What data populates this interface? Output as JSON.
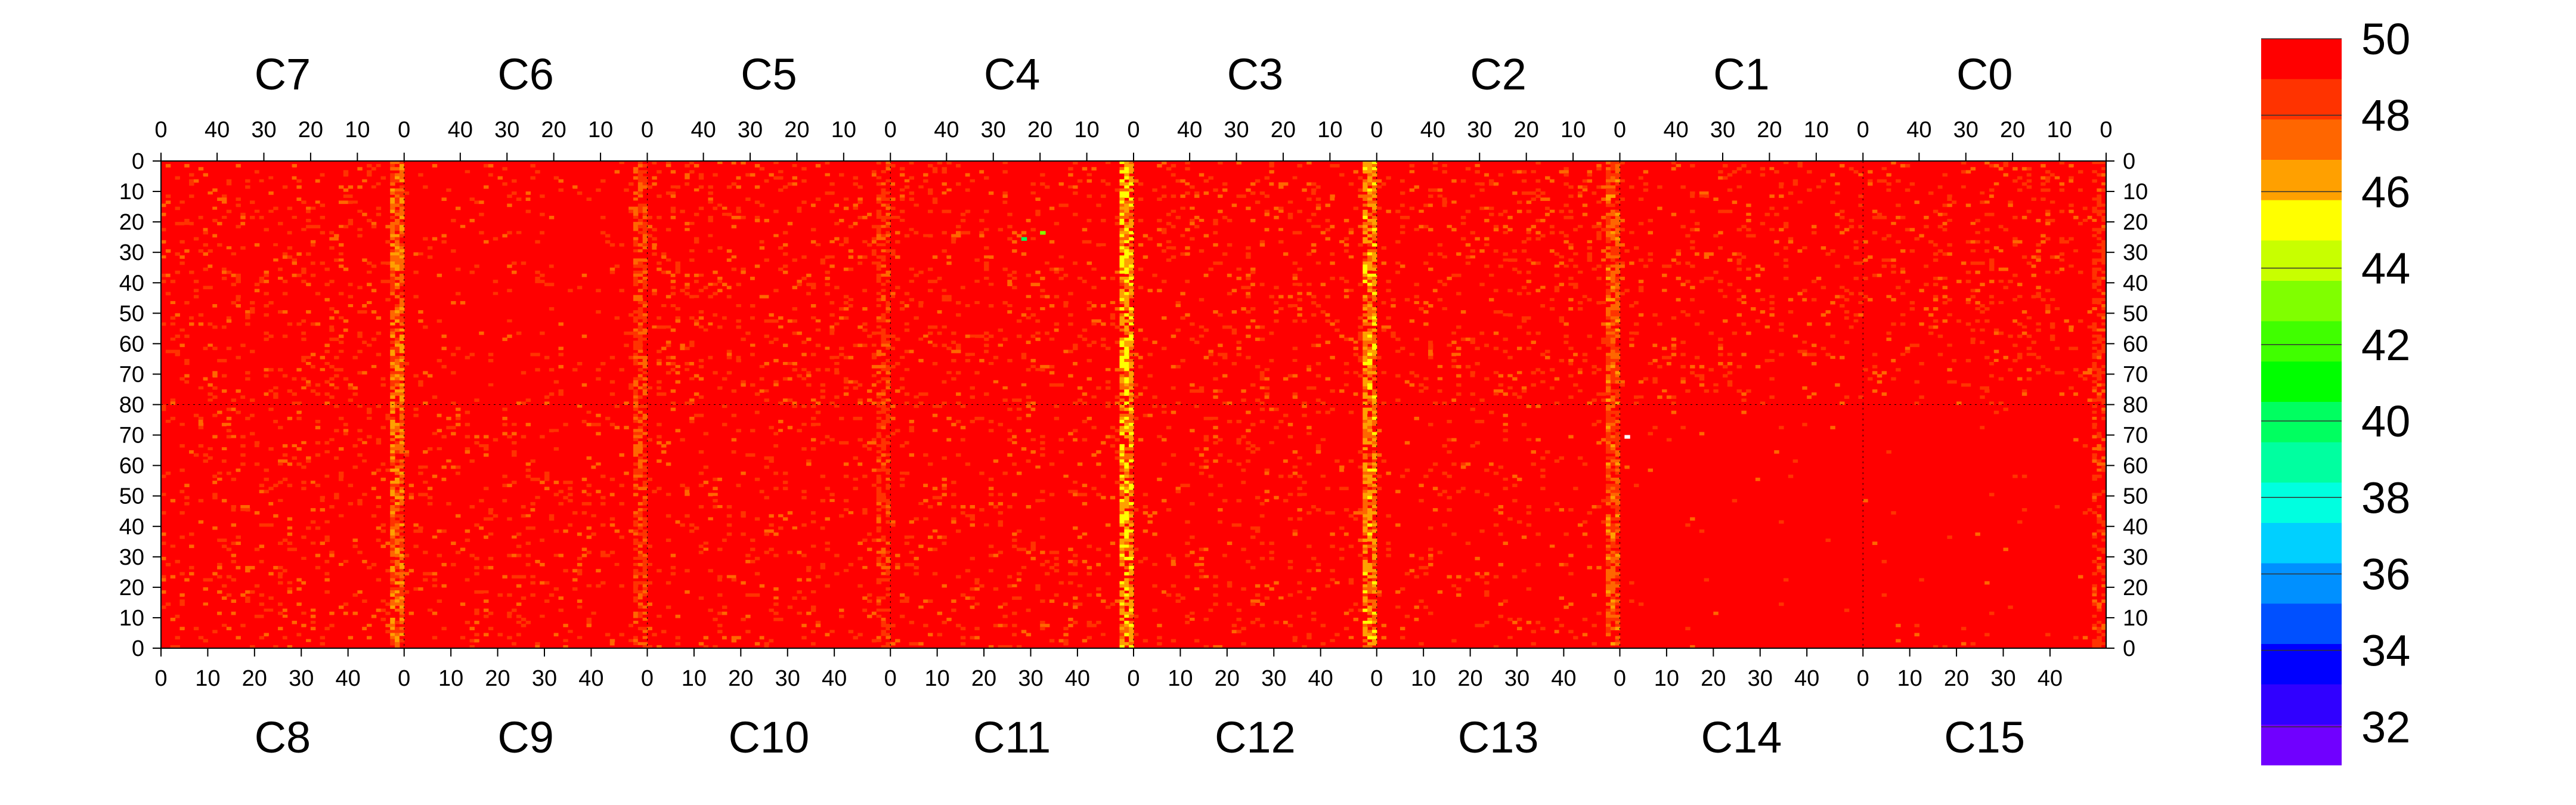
{
  "chart_data": {
    "type": "heatmap",
    "title": "",
    "top_chip_labels": [
      "C7",
      "C6",
      "C5",
      "C4",
      "C3",
      "C2",
      "C1",
      "C0"
    ],
    "bottom_chip_labels": [
      "C8",
      "C9",
      "C10",
      "C11",
      "C12",
      "C13",
      "C14",
      "C15"
    ],
    "columns_per_chip": 52,
    "rows_per_half": 80,
    "top_x_ticks": [
      0,
      10,
      20,
      30,
      40
    ],
    "top_x_tick_labels": [
      "0",
      "10",
      "20",
      "30",
      "40"
    ],
    "bottom_x_ticks": [
      0,
      10,
      20,
      30,
      40
    ],
    "bottom_x_tick_labels": [
      "0",
      "10",
      "20",
      "30",
      "40"
    ],
    "y_ticks": [
      0,
      10,
      20,
      30,
      40,
      50,
      60,
      70,
      80
    ],
    "y_tick_labels_top_half": [
      "0",
      "10",
      "20",
      "30",
      "40",
      "50",
      "60",
      "70",
      "80"
    ],
    "y_tick_labels_bottom_half": [
      "70",
      "60",
      "50",
      "40",
      "30",
      "20",
      "10",
      "0"
    ],
    "zlim": [
      31,
      50
    ],
    "colorbar_ticks": [
      50,
      48,
      46,
      44,
      42,
      40,
      38,
      36,
      34,
      32
    ],
    "colorbar_tick_labels": [
      "50",
      "48",
      "46",
      "44",
      "42",
      "40",
      "38",
      "36",
      "34",
      "32"
    ],
    "colorbar_colors": [
      "#ff0000",
      "#ff3300",
      "#ff6600",
      "#ffa000",
      "#ffff00",
      "#c8ff00",
      "#80ff00",
      "#40ff00",
      "#00ff00",
      "#00ff60",
      "#00ffa0",
      "#00ffe0",
      "#00d0ff",
      "#0090ff",
      "#0050ff",
      "#0000ff",
      "#3000ff",
      "#7000ff"
    ],
    "base_value": 50,
    "noise_level_top_per_chip": [
      0.55,
      0.22,
      0.6,
      0.55,
      0.5,
      0.55,
      0.45,
      0.5
    ],
    "noise_level_bottom_per_chip": [
      0.5,
      0.4,
      0.4,
      0.42,
      0.4,
      0.25,
      0.05,
      0.05
    ],
    "hot_column_values": [
      46,
      47,
      47.5,
      45,
      45.5,
      46.5,
      49.5,
      47.5
    ]
  }
}
